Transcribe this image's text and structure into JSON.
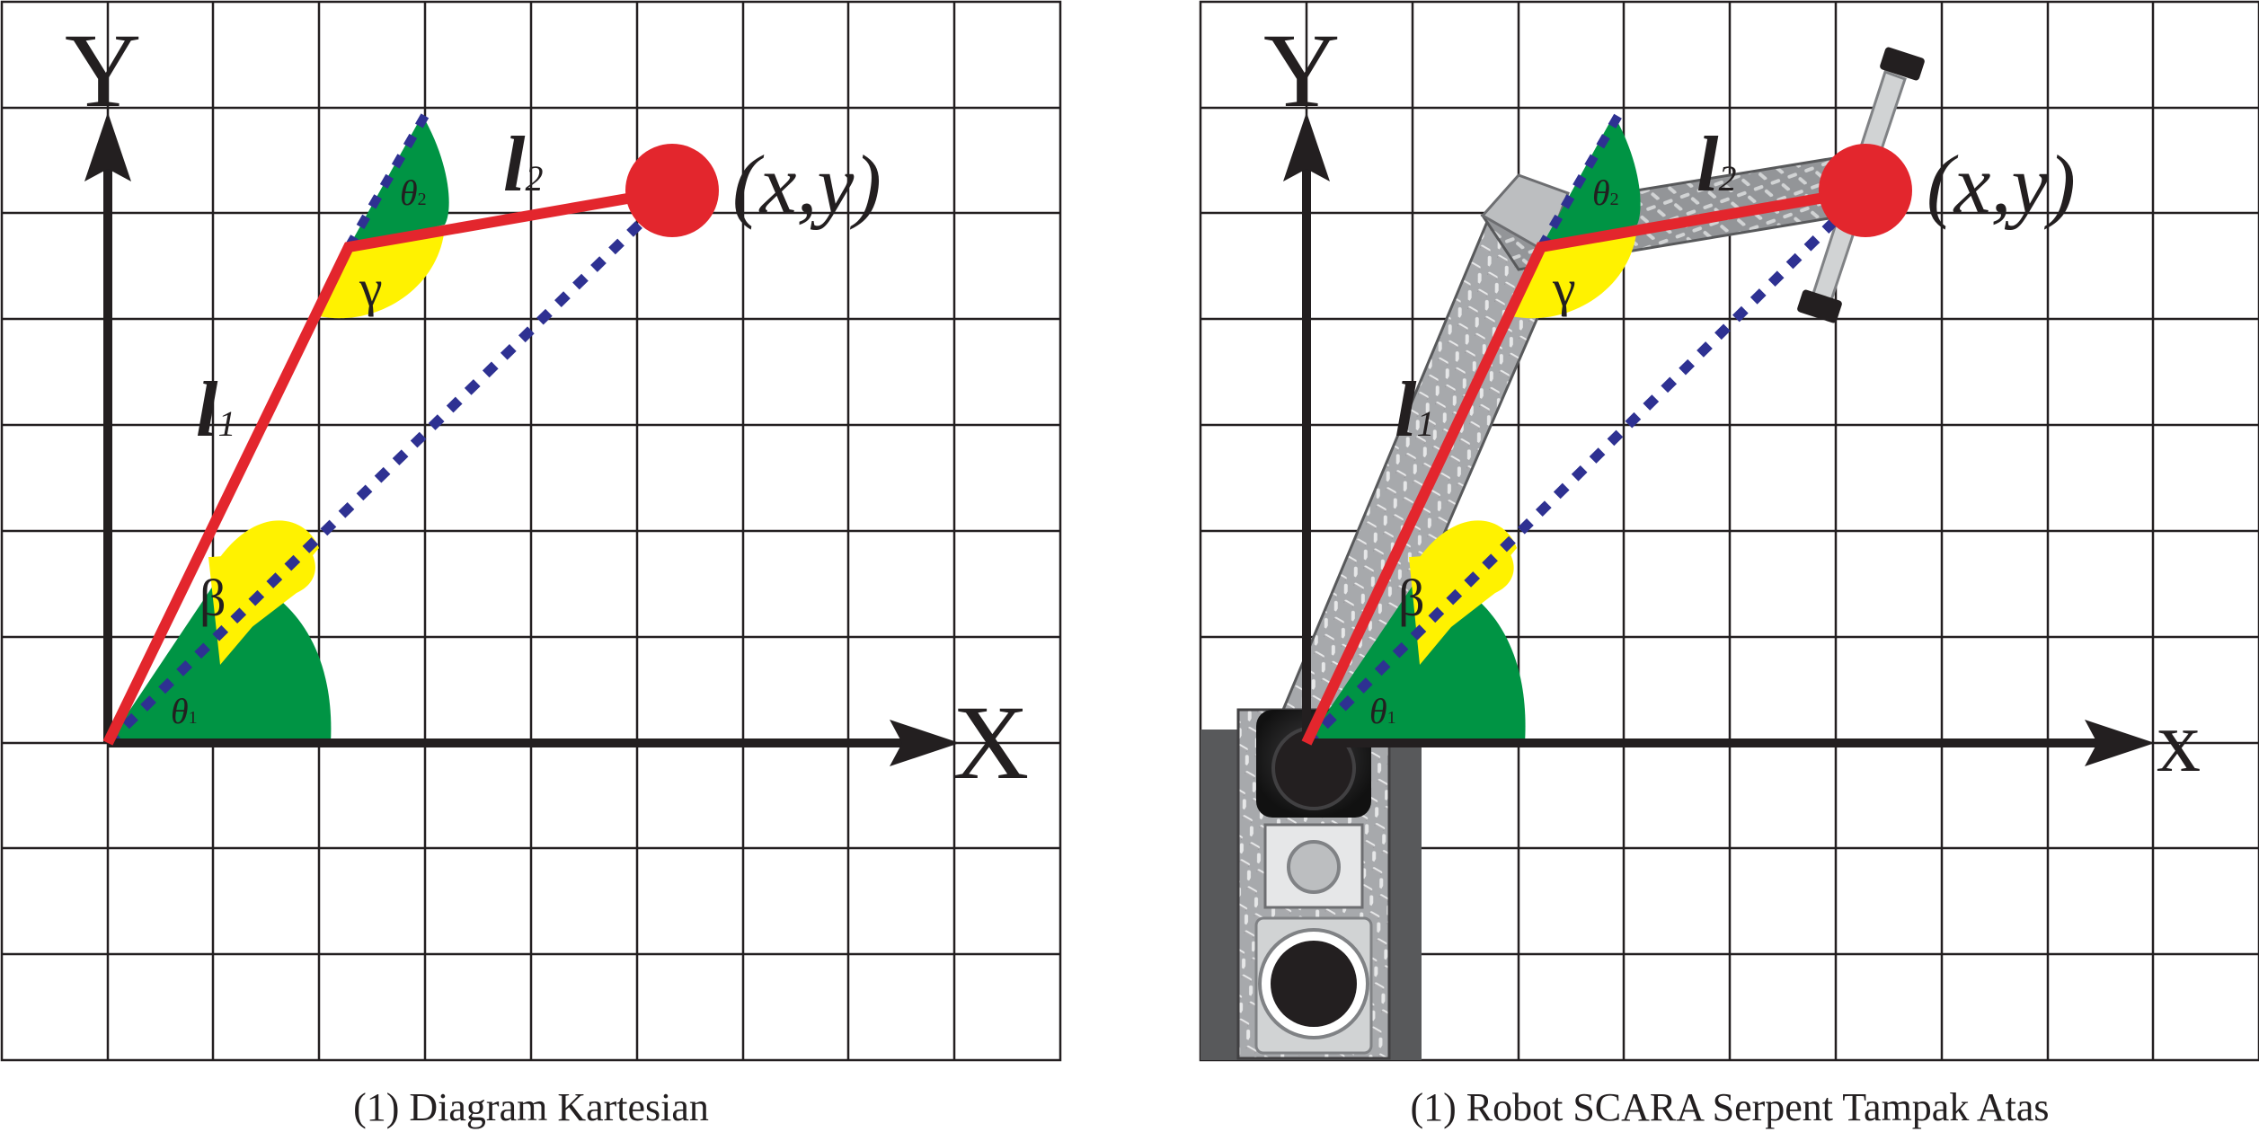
{
  "panels": [
    {
      "caption": "(1) Diagram Kartesian",
      "axis_y": "Y",
      "axis_x": "X",
      "point_label": "(x,y)",
      "link1": {
        "main": "l",
        "sub": "1"
      },
      "link2": {
        "main": "l",
        "sub": "2"
      },
      "beta": "β",
      "gamma": "γ",
      "theta1": {
        "main": "θ",
        "sub": "1"
      },
      "theta2": {
        "main": "θ",
        "sub": "2"
      }
    },
    {
      "caption": "(1) Robot SCARA Serpent Tampak Atas",
      "axis_y": "Y",
      "axis_x": "x",
      "point_label": "(x,y)",
      "link1": {
        "main": "l",
        "sub": "1"
      },
      "link2": {
        "main": "l",
        "sub": "2"
      },
      "beta": "β",
      "gamma": "γ",
      "theta1": {
        "main": "θ",
        "sub": "1"
      },
      "theta2": {
        "main": "θ",
        "sub": "2"
      }
    }
  ],
  "colors": {
    "link": "#e3262d",
    "reach_line": "#2e3192",
    "theta_fill": "#009444",
    "angle_fill": "#fff200",
    "axis": "#231f20",
    "grid": "#231f20"
  }
}
